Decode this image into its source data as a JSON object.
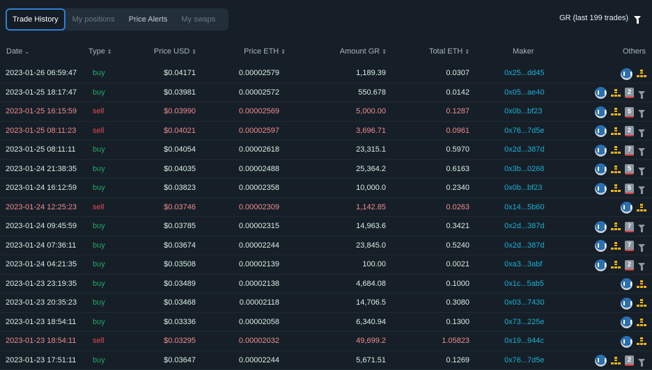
{
  "tabs": [
    {
      "label": "Trade History",
      "state": "active"
    },
    {
      "label": "My positions",
      "state": "dim"
    },
    {
      "label": "Price Alerts",
      "state": "lit"
    },
    {
      "label": "My swaps",
      "state": "dim"
    }
  ],
  "summary": "GR (last 199 trades)",
  "columns": {
    "date": "Date",
    "type": "Type",
    "price_usd": "Price USD",
    "price_eth": "Price ETH",
    "amount": "Amount GR",
    "total": "Total ETH",
    "maker": "Maker",
    "others": "Others"
  },
  "colors": {
    "buy": "#22a865",
    "sell": "#e34a52",
    "maker": "#19b0d3",
    "accent": "#2f7fd6"
  },
  "rows": [
    [
      "2023-01-26 06:59:47",
      "buy",
      "$0.04171",
      "0.00002579",
      "1,189.39",
      "0.0307",
      "0x25...dd45",
      null
    ],
    [
      "2023-01-25 18:17:47",
      "buy",
      "$0.03981",
      "0.00002572",
      "550.678",
      "0.0142",
      "0x05...ae40",
      "2"
    ],
    [
      "2023-01-25 16:15:59",
      "sell",
      "$0.03990",
      "0.00002569",
      "5,000.00",
      "0.1287",
      "0x0b...bf23",
      "5"
    ],
    [
      "2023-01-25 08:11:23",
      "sell",
      "$0.04021",
      "0.00002597",
      "3,696.71",
      "0.0961",
      "0x76...7d5e",
      "2"
    ],
    [
      "2023-01-25 08:11:11",
      "buy",
      "$0.04054",
      "0.00002618",
      "23,315.1",
      "0.5970",
      "0x2d...387d",
      "7"
    ],
    [
      "2023-01-24 21:38:35",
      "buy",
      "$0.04035",
      "0.00002488",
      "25,364.2",
      "0.6163",
      "0x3b...0268",
      "5"
    ],
    [
      "2023-01-24 16:12:59",
      "buy",
      "$0.03823",
      "0.00002358",
      "10,000.0",
      "0.2340",
      "0x0b...bf23",
      "5"
    ],
    [
      "2023-01-24 12:25:23",
      "sell",
      "$0.03746",
      "0.00002309",
      "1,142.85",
      "0.0263",
      "0x14...5b60",
      null
    ],
    [
      "2023-01-24 09:45:59",
      "buy",
      "$0.03785",
      "0.00002315",
      "14,963.6",
      "0.3421",
      "0x2d...387d",
      "7"
    ],
    [
      "2023-01-24 07:36:11",
      "buy",
      "$0.03674",
      "0.00002244",
      "23,845.0",
      "0.5240",
      "0x2d...387d",
      "7"
    ],
    [
      "2023-01-24 04:21:35",
      "buy",
      "$0.03508",
      "0.00002139",
      "100.00",
      "0.0021",
      "0xa3...3abf",
      "2"
    ],
    [
      "2023-01-23 23:19:35",
      "buy",
      "$0.03489",
      "0.00002138",
      "4,684.08",
      "0.1000",
      "0x1c...5ab5",
      null
    ],
    [
      "2023-01-23 20:35:23",
      "buy",
      "$0.03468",
      "0.00002118",
      "14,706.5",
      "0.3080",
      "0x03...7430",
      null
    ],
    [
      "2023-01-23 18:54:11",
      "buy",
      "$0.03336",
      "0.00002058",
      "6,340.94",
      "0.1300",
      "0x73...225e",
      null
    ],
    [
      "2023-01-23 18:54:11",
      "sell",
      "$0.03295",
      "0.00002032",
      "49,699.2",
      "1.05823",
      "0x19...944c",
      null
    ],
    [
      "2023-01-23 17:51:11",
      "buy",
      "$0.03647",
      "0.00002244",
      "5,671.51",
      "0.1269",
      "0x76...7d5e",
      "2"
    ]
  ]
}
